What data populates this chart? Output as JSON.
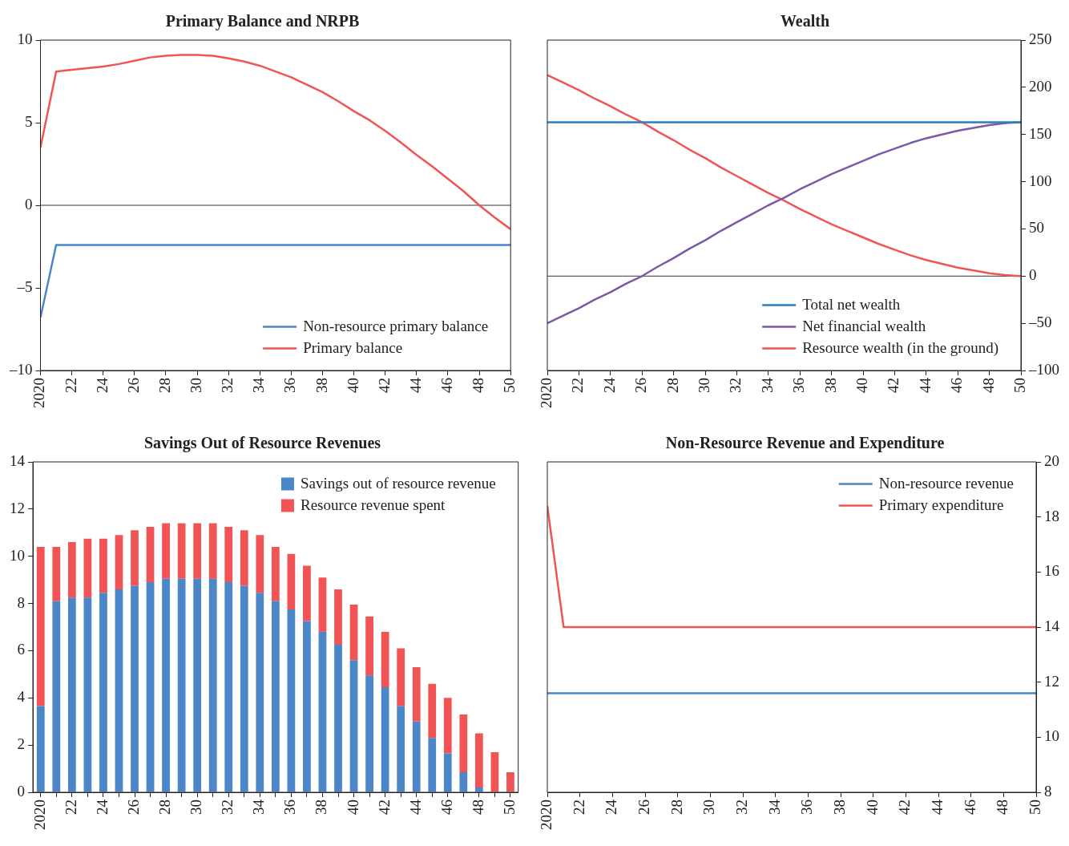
{
  "chart_data": [
    {
      "type": "line",
      "title": "Primary Balance and NRPB",
      "x": [
        2020,
        2021,
        2022,
        2023,
        2024,
        2025,
        2026,
        2027,
        2028,
        2029,
        2030,
        2031,
        2032,
        2033,
        2034,
        2035,
        2036,
        2037,
        2038,
        2039,
        2040,
        2041,
        2042,
        2043,
        2044,
        2045,
        2046,
        2047,
        2048,
        2049,
        2050
      ],
      "xlim": [
        2020,
        2050
      ],
      "xticks": [
        {
          "value": 2020,
          "label": "2020"
        },
        {
          "value": 2022,
          "label": "22"
        },
        {
          "value": 2024,
          "label": "24"
        },
        {
          "value": 2026,
          "label": "26"
        },
        {
          "value": 2028,
          "label": "28"
        },
        {
          "value": 2030,
          "label": "30"
        },
        {
          "value": 2032,
          "label": "32"
        },
        {
          "value": 2034,
          "label": "34"
        },
        {
          "value": 2036,
          "label": "36"
        },
        {
          "value": 2038,
          "label": "38"
        },
        {
          "value": 2040,
          "label": "40"
        },
        {
          "value": 2042,
          "label": "42"
        },
        {
          "value": 2044,
          "label": "44"
        },
        {
          "value": 2046,
          "label": "46"
        },
        {
          "value": 2048,
          "label": "48"
        },
        {
          "value": 2050,
          "label": "50"
        }
      ],
      "ylim": [
        -10,
        10
      ],
      "yticks": [
        {
          "value": -10,
          "label": "–10"
        },
        {
          "value": -5,
          "label": "–5"
        },
        0,
        5,
        10
      ],
      "series": [
        {
          "name": "Non-resource primary balance",
          "color": "#4a86c8",
          "values": [
            -6.8,
            -2.4,
            -2.4,
            -2.4,
            -2.4,
            -2.4,
            -2.4,
            -2.4,
            -2.4,
            -2.4,
            -2.4,
            -2.4,
            -2.4,
            -2.4,
            -2.4,
            -2.4,
            -2.4,
            -2.4,
            -2.4,
            -2.4,
            -2.4,
            -2.4,
            -2.4,
            -2.4,
            -2.4,
            -2.4,
            -2.4,
            -2.4,
            -2.4,
            -2.4,
            -2.4
          ]
        },
        {
          "name": "Primary balance",
          "color": "#f05454",
          "values": [
            3.5,
            8.1,
            8.2,
            8.3,
            8.4,
            8.55,
            8.75,
            8.95,
            9.05,
            9.1,
            9.1,
            9.05,
            8.9,
            8.7,
            8.45,
            8.1,
            7.75,
            7.3,
            6.85,
            6.3,
            5.7,
            5.15,
            4.5,
            3.8,
            3.05,
            2.35,
            1.6,
            0.85,
            0.0,
            -0.75,
            -1.45
          ]
        }
      ],
      "ref_lines": [
        {
          "axis": "y",
          "value": 0,
          "color": "#333333"
        }
      ],
      "grid": false,
      "legend": "bottom right"
    },
    {
      "type": "line",
      "title": "Wealth",
      "x": [
        2020,
        2021,
        2022,
        2023,
        2024,
        2025,
        2026,
        2027,
        2028,
        2029,
        2030,
        2031,
        2032,
        2033,
        2034,
        2035,
        2036,
        2037,
        2038,
        2039,
        2040,
        2041,
        2042,
        2043,
        2044,
        2045,
        2046,
        2047,
        2048,
        2049,
        2050
      ],
      "xlim": [
        2020,
        2050
      ],
      "xticks": [
        {
          "value": 2020,
          "label": "2020"
        },
        {
          "value": 2022,
          "label": "22"
        },
        {
          "value": 2024,
          "label": "24"
        },
        {
          "value": 2026,
          "label": "26"
        },
        {
          "value": 2028,
          "label": "28"
        },
        {
          "value": 2030,
          "label": "30"
        },
        {
          "value": 2032,
          "label": "32"
        },
        {
          "value": 2034,
          "label": "34"
        },
        {
          "value": 2036,
          "label": "36"
        },
        {
          "value": 2038,
          "label": "38"
        },
        {
          "value": 2040,
          "label": "40"
        },
        {
          "value": 2042,
          "label": "42"
        },
        {
          "value": 2044,
          "label": "44"
        },
        {
          "value": 2046,
          "label": "46"
        },
        {
          "value": 2048,
          "label": "48"
        },
        {
          "value": 2050,
          "label": "50"
        }
      ],
      "y2lim": [
        -100,
        250
      ],
      "y2ticks": [
        {
          "value": -100,
          "label": "–100"
        },
        {
          "value": -50,
          "label": "–50"
        },
        0,
        50,
        100,
        150,
        200,
        250
      ],
      "series": [
        {
          "name": "Total net wealth",
          "color": "#2a7fc1",
          "axis": "y2",
          "values": [
            163,
            163,
            163,
            163,
            163,
            163,
            163,
            163,
            163,
            163,
            163,
            163,
            163,
            163,
            163,
            163,
            163,
            163,
            163,
            163,
            163,
            163,
            163,
            163,
            163,
            163,
            163,
            163,
            163,
            163,
            163
          ]
        },
        {
          "name": "Net financial wealth",
          "color": "#7b59a8",
          "axis": "y2",
          "values": [
            -50,
            -42,
            -34,
            -25,
            -17,
            -8,
            0,
            10,
            19,
            29,
            38,
            48,
            57,
            66,
            75,
            83,
            92,
            100,
            108,
            115,
            122,
            129,
            135,
            141,
            146,
            150,
            154,
            157,
            160,
            162,
            163
          ]
        },
        {
          "name": "Resource wealth (in the ground)",
          "color": "#f05454",
          "axis": "y2",
          "values": [
            213,
            205,
            197,
            188,
            180,
            171,
            163,
            153,
            144,
            134,
            125,
            115,
            106,
            97,
            88,
            80,
            71,
            63,
            55,
            48,
            41,
            34,
            28,
            22,
            17,
            13,
            9,
            6,
            3,
            1,
            0
          ]
        }
      ],
      "ref_lines": [
        {
          "axis": "y2",
          "value": 0,
          "color": "#333333"
        }
      ],
      "grid": false,
      "legend": "bottom right"
    },
    {
      "type": "bar",
      "title": "Savings Out of Resource Revenues",
      "categories": [
        "2020",
        null,
        "22",
        null,
        "24",
        null,
        "26",
        null,
        "28",
        null,
        "30",
        null,
        "32",
        null,
        "34",
        null,
        "36",
        null,
        "38",
        null,
        "40",
        null,
        "42",
        null,
        "44",
        null,
        "46",
        null,
        "48",
        null,
        "50"
      ],
      "ylim": [
        0,
        14
      ],
      "yticks": [
        0,
        2,
        4,
        6,
        8,
        10,
        12,
        14
      ],
      "stacked": true,
      "series": [
        {
          "name": "Savings out of resource revenue",
          "color": "#4a86c8",
          "values": [
            3.65,
            8.1,
            8.25,
            8.25,
            8.45,
            8.6,
            8.75,
            8.9,
            9.05,
            9.05,
            9.05,
            9.05,
            8.9,
            8.75,
            8.45,
            8.1,
            7.75,
            7.25,
            6.8,
            6.25,
            5.6,
            4.95,
            4.45,
            3.65,
            3.0,
            2.3,
            1.65,
            0.85,
            0.2,
            0,
            0
          ]
        },
        {
          "name": "Resource revenue spent",
          "color": "#f05454",
          "values": [
            6.75,
            2.3,
            2.35,
            2.5,
            2.3,
            2.3,
            2.35,
            2.35,
            2.35,
            2.35,
            2.35,
            2.35,
            2.35,
            2.35,
            2.45,
            2.3,
            2.35,
            2.35,
            2.3,
            2.35,
            2.35,
            2.5,
            2.35,
            2.45,
            2.3,
            2.3,
            2.35,
            2.45,
            2.3,
            1.7,
            0.85
          ]
        }
      ],
      "grid": false,
      "legend": "top right"
    },
    {
      "type": "line",
      "title": "Non-Resource Revenue and Expenditure",
      "x": [
        2020,
        2021,
        2022,
        2023,
        2024,
        2025,
        2026,
        2027,
        2028,
        2029,
        2030,
        2031,
        2032,
        2033,
        2034,
        2035,
        2036,
        2037,
        2038,
        2039,
        2040,
        2041,
        2042,
        2043,
        2044,
        2045,
        2046,
        2047,
        2048,
        2049,
        2050
      ],
      "xlim": [
        2020,
        2050
      ],
      "xticks": [
        {
          "value": 2020,
          "label": "2020"
        },
        {
          "value": 2022,
          "label": "22"
        },
        {
          "value": 2024,
          "label": "24"
        },
        {
          "value": 2026,
          "label": "26"
        },
        {
          "value": 2028,
          "label": "28"
        },
        {
          "value": 2030,
          "label": "30"
        },
        {
          "value": 2032,
          "label": "32"
        },
        {
          "value": 2034,
          "label": "34"
        },
        {
          "value": 2036,
          "label": "36"
        },
        {
          "value": 2038,
          "label": "38"
        },
        {
          "value": 2040,
          "label": "40"
        },
        {
          "value": 2042,
          "label": "42"
        },
        {
          "value": 2044,
          "label": "44"
        },
        {
          "value": 2046,
          "label": "46"
        },
        {
          "value": 2048,
          "label": "48"
        },
        {
          "value": 2050,
          "label": "50"
        }
      ],
      "y2lim": [
        8,
        20
      ],
      "y2ticks": [
        8,
        10,
        12,
        14,
        16,
        18,
        20
      ],
      "series": [
        {
          "name": "Non-resource revenue",
          "color": "#4a86c8",
          "axis": "y2",
          "values": [
            11.6,
            11.6,
            11.6,
            11.6,
            11.6,
            11.6,
            11.6,
            11.6,
            11.6,
            11.6,
            11.6,
            11.6,
            11.6,
            11.6,
            11.6,
            11.6,
            11.6,
            11.6,
            11.6,
            11.6,
            11.6,
            11.6,
            11.6,
            11.6,
            11.6,
            11.6,
            11.6,
            11.6,
            11.6,
            11.6,
            11.6
          ]
        },
        {
          "name": "Primary expenditure",
          "color": "#f05454",
          "axis": "y2",
          "values": [
            18.4,
            14,
            14,
            14,
            14,
            14,
            14,
            14,
            14,
            14,
            14,
            14,
            14,
            14,
            14,
            14,
            14,
            14,
            14,
            14,
            14,
            14,
            14,
            14,
            14,
            14,
            14,
            14,
            14,
            14,
            14
          ]
        }
      ],
      "grid": false,
      "legend": "top right"
    }
  ]
}
